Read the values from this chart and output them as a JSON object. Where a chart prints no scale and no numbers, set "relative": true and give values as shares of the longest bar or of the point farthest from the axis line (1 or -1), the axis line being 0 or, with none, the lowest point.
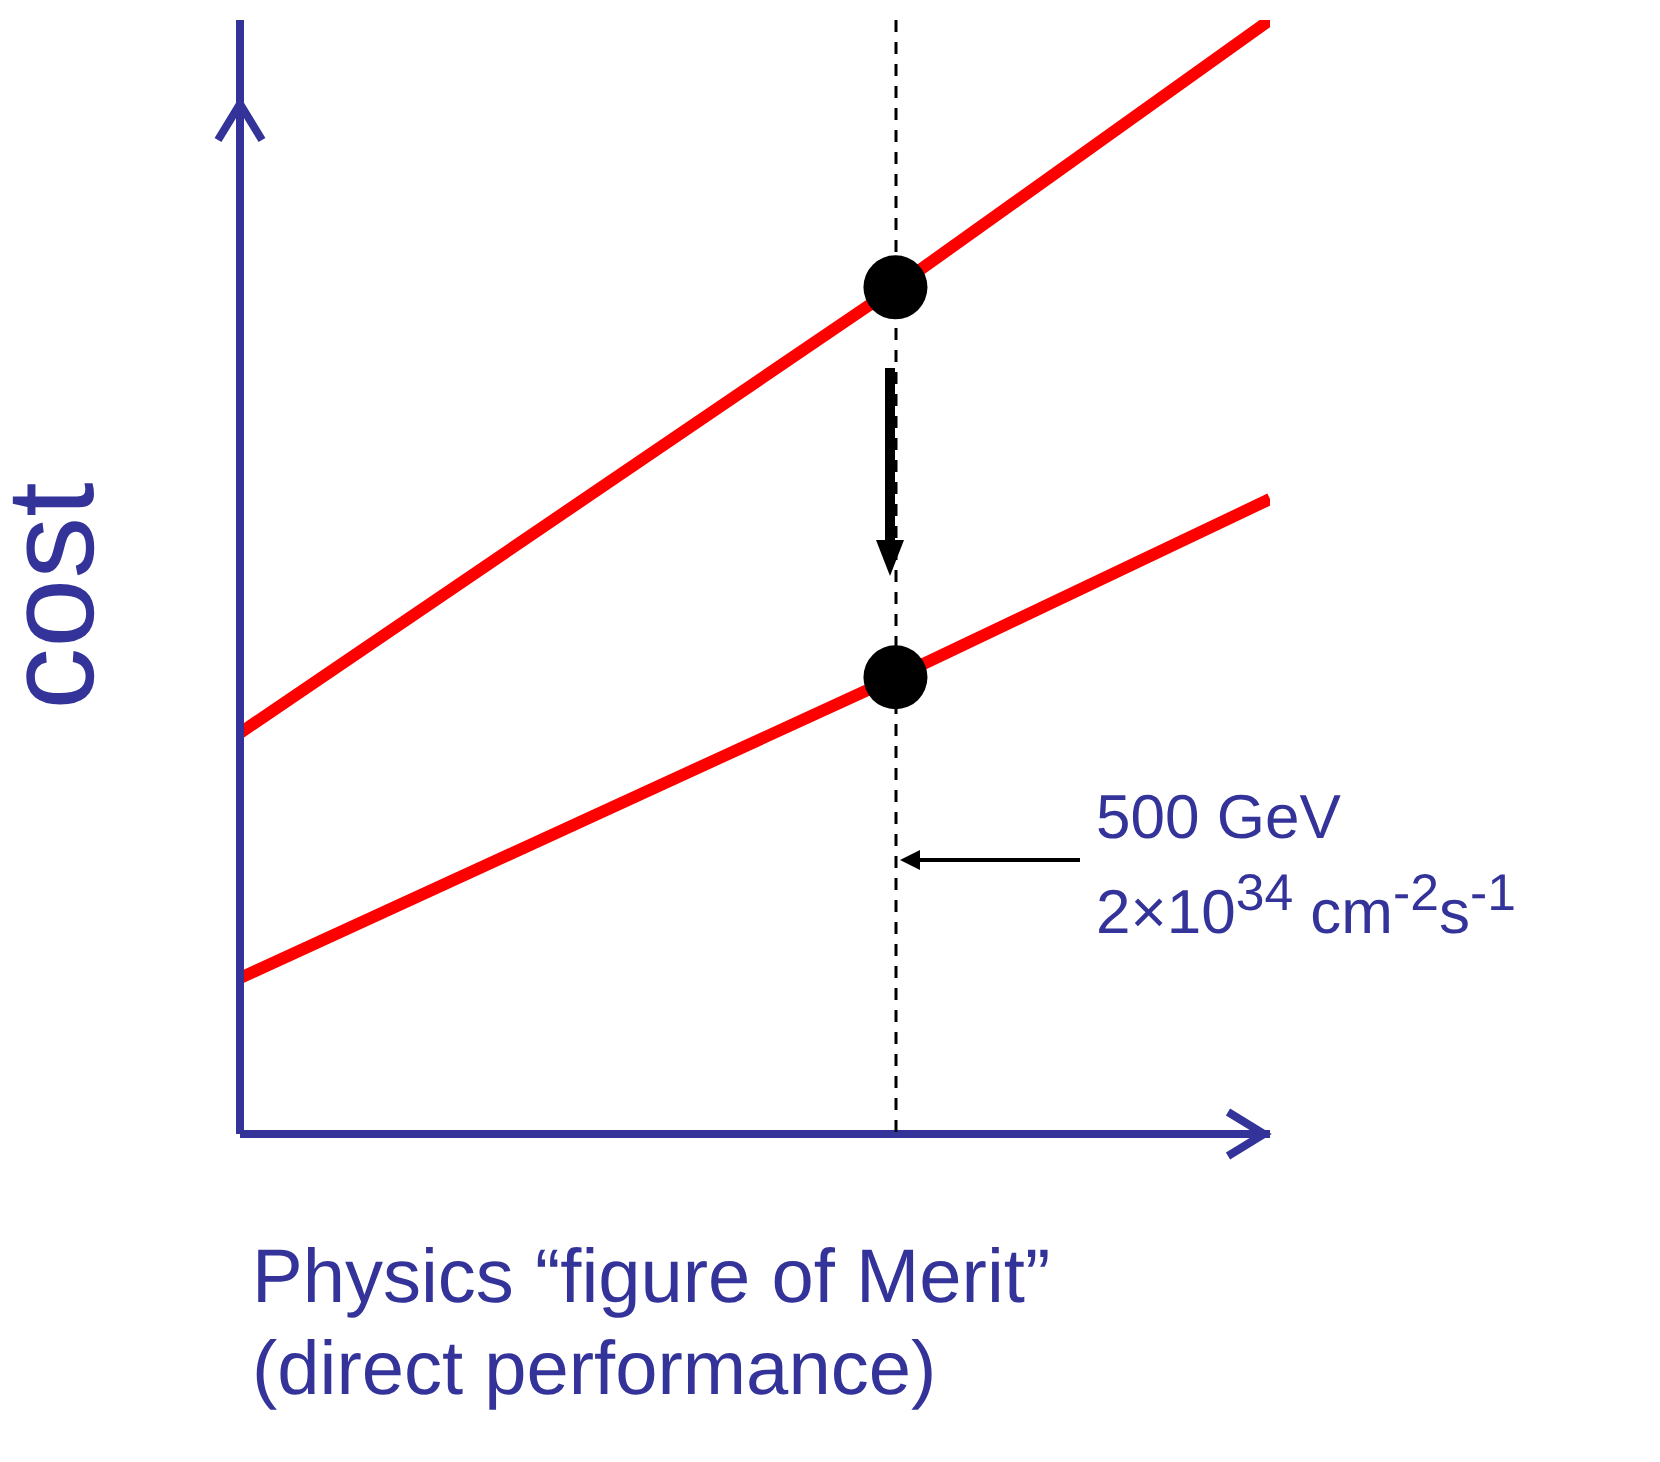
{
  "chart_data": {
    "type": "line",
    "relative": true,
    "ylabel": "cost",
    "xlabel": "Physics “figure of Merit”\n(direct performance)",
    "categories": [
      null,
      null,
      null,
      null,
      null,
      null,
      null,
      null,
      null,
      null,
      null,
      null
    ],
    "series": [
      {
        "color": "#ff0000",
        "values": [
          0.36,
          null,
          null,
          null,
          null,
          null,
          null,
          0.76,
          null,
          null,
          null,
          1
        ]
      },
      {
        "color": "#ff0000",
        "values": [
          0.14,
          null,
          null,
          null,
          null,
          null,
          null,
          0.41,
          null,
          null,
          null,
          0.57
        ]
      }
    ],
    "annotations": [
      "500 GeV\n2×10$^{34}$ cm$^{-2}$s$^{-1}$"
    ],
    "grid": false
  }
}
